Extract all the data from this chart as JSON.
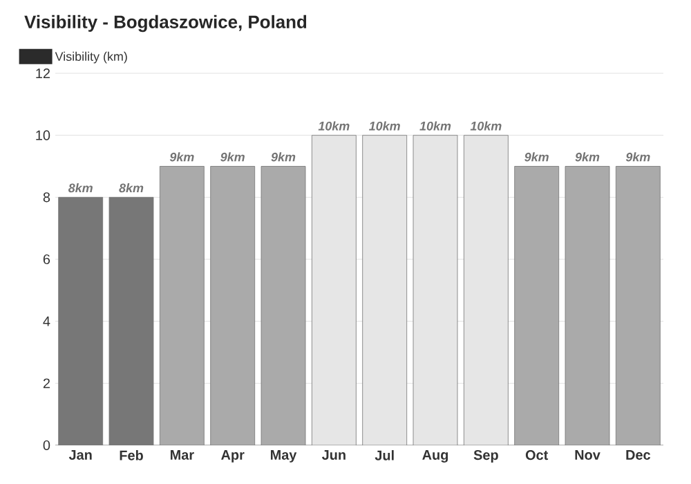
{
  "chart_data": {
    "type": "bar",
    "title": "Visibility - Bogdaszowice, Poland",
    "categories": [
      "Jan",
      "Feb",
      "Mar",
      "Apr",
      "May",
      "Jun",
      "Jul",
      "Aug",
      "Sep",
      "Oct",
      "Nov",
      "Dec"
    ],
    "series": [
      {
        "name": "Visibility (km)",
        "color": "#2b2b2b",
        "values": [
          8,
          8,
          9,
          9,
          9,
          10,
          10,
          10,
          10,
          9,
          9,
          9
        ],
        "colors": [
          "#777777",
          "#777777",
          "#aaaaaa",
          "#aaaaaa",
          "#aaaaaa",
          "#e6e6e6",
          "#e6e6e6",
          "#e6e6e6",
          "#e6e6e6",
          "#aaaaaa",
          "#aaaaaa",
          "#aaaaaa"
        ],
        "value_labels": [
          "8km",
          "8km",
          "9km",
          "9km",
          "9km",
          "10km",
          "10km",
          "10km",
          "10km",
          "9km",
          "9km",
          "9km"
        ]
      }
    ],
    "ylim": [
      0,
      12
    ],
    "yticks": [
      0,
      2,
      4,
      6,
      8,
      10,
      12
    ],
    "grid": "y",
    "legend": "top left"
  }
}
